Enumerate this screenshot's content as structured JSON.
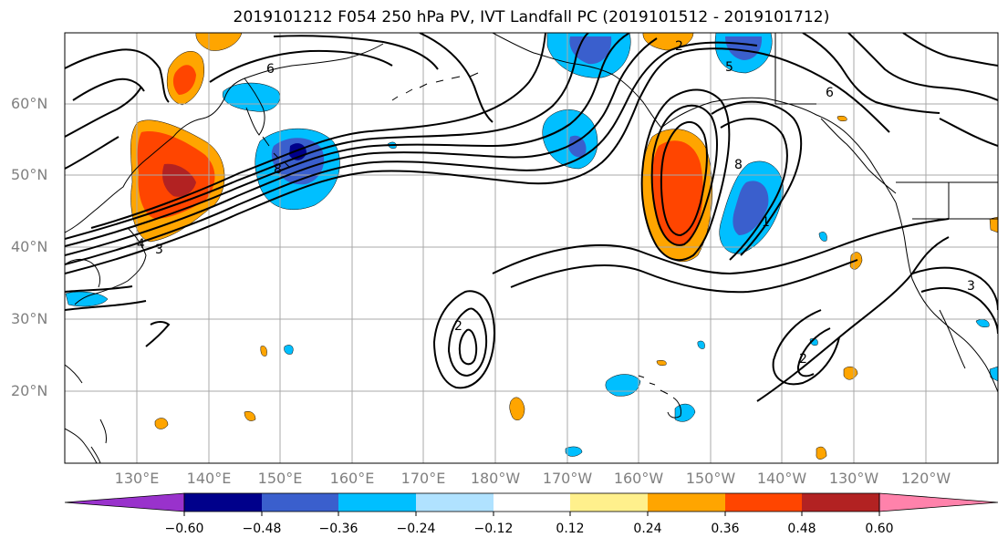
{
  "title": "2019101212 F054 250 hPa PV, IVT Landfall PC (2019101512 - 2019101712)",
  "map": {
    "lat_labels": [
      "60°N",
      "50°N",
      "40°N",
      "30°N",
      "20°N"
    ],
    "lon_labels": [
      "130°E",
      "140°E",
      "150°E",
      "160°E",
      "170°E",
      "180°W",
      "170°W",
      "160°W",
      "150°W",
      "140°W",
      "130°W",
      "120°W"
    ],
    "contour_labels": [
      "1",
      "2",
      "3",
      "4",
      "5",
      "6",
      "8",
      "2",
      "2",
      "3",
      "8",
      "6"
    ]
  },
  "colorbar": {
    "ticks": [
      "−0.60",
      "−0.48",
      "−0.36",
      "−0.24",
      "−0.12",
      "0.12",
      "0.24",
      "0.36",
      "0.48",
      "0.60"
    ],
    "colors": [
      "#9932cc",
      "#00008b",
      "#3a5fcd",
      "#00bfff",
      "#b0e2ff",
      "#ffffff",
      "#fff08c",
      "#ffa500",
      "#ff4500",
      "#b22222",
      "#ff82ab"
    ]
  }
}
